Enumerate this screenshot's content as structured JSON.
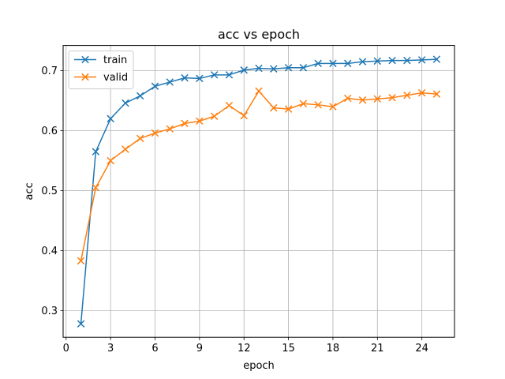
{
  "chart_data": {
    "type": "line",
    "title": "acc vs epoch",
    "xlabel": "epoch",
    "ylabel": "acc",
    "xlim": [
      -0.2,
      26.2
    ],
    "ylim": [
      0.2555,
      0.742
    ],
    "xticks": [
      0,
      3,
      6,
      9,
      12,
      15,
      18,
      21,
      24
    ],
    "yticks": [
      0.3,
      0.4,
      0.5,
      0.6,
      0.7
    ],
    "grid": true,
    "legend": "top-left",
    "marker": "x",
    "x": [
      1,
      2,
      3,
      4,
      5,
      6,
      7,
      8,
      9,
      10,
      11,
      12,
      13,
      14,
      15,
      16,
      17,
      18,
      19,
      20,
      21,
      22,
      23,
      24,
      25
    ],
    "series": [
      {
        "name": "train",
        "color": "#1f77b4",
        "values": [
          0.278,
          0.565,
          0.62,
          0.646,
          0.658,
          0.674,
          0.681,
          0.688,
          0.687,
          0.693,
          0.693,
          0.701,
          0.704,
          0.703,
          0.705,
          0.705,
          0.712,
          0.712,
          0.712,
          0.715,
          0.716,
          0.717,
          0.717,
          0.718,
          0.719
        ]
      },
      {
        "name": "valid",
        "color": "#ff7f0e",
        "values": [
          0.383,
          0.505,
          0.55,
          0.569,
          0.587,
          0.596,
          0.603,
          0.612,
          0.616,
          0.624,
          0.642,
          0.625,
          0.666,
          0.638,
          0.636,
          0.645,
          0.643,
          0.64,
          0.654,
          0.651,
          0.653,
          0.655,
          0.659,
          0.663,
          0.661
        ]
      }
    ]
  }
}
